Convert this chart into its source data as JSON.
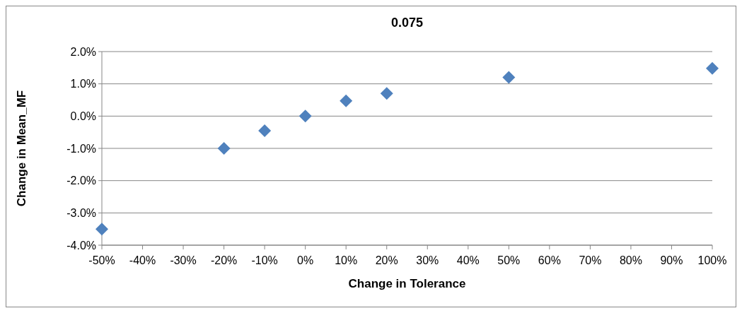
{
  "chart_data": {
    "type": "scatter",
    "title": "0.075",
    "xlabel": "Change in Tolerance",
    "ylabel": "Change in Mean_MF",
    "x": [
      -50,
      -20,
      -10,
      0,
      10,
      20,
      50,
      100
    ],
    "values": [
      -3.5,
      -1.0,
      -0.45,
      0,
      0.47,
      0.7,
      1.2,
      1.48
    ],
    "color": "#4f81bd",
    "marker": "diamond",
    "grid": "y",
    "xlim": [
      -50,
      100
    ],
    "xticks": [
      {
        "value": -50,
        "label": "-50%"
      },
      {
        "value": -40,
        "label": "-40%"
      },
      {
        "value": -30,
        "label": "-30%"
      },
      {
        "value": -20,
        "label": "-20%"
      },
      {
        "value": -10,
        "label": "-10%"
      },
      {
        "value": 0,
        "label": "0%"
      },
      {
        "value": 10,
        "label": "10%"
      },
      {
        "value": 20,
        "label": "20%"
      },
      {
        "value": 30,
        "label": "30%"
      },
      {
        "value": 40,
        "label": "40%"
      },
      {
        "value": 50,
        "label": "50%"
      },
      {
        "value": 60,
        "label": "60%"
      },
      {
        "value": 70,
        "label": "70%"
      },
      {
        "value": 80,
        "label": "80%"
      },
      {
        "value": 90,
        "label": "90%"
      },
      {
        "value": 100,
        "label": "100%"
      }
    ],
    "ylim": [
      -4,
      2
    ],
    "yticks": [
      {
        "value": -4,
        "label": "-4.0%"
      },
      {
        "value": -3,
        "label": "-3.0%"
      },
      {
        "value": -2,
        "label": "-2.0%"
      },
      {
        "value": -1,
        "label": "-1.0%"
      },
      {
        "value": 0,
        "label": "0.0%"
      },
      {
        "value": 1,
        "label": "1.0%"
      },
      {
        "value": 2,
        "label": "2.0%"
      }
    ]
  }
}
